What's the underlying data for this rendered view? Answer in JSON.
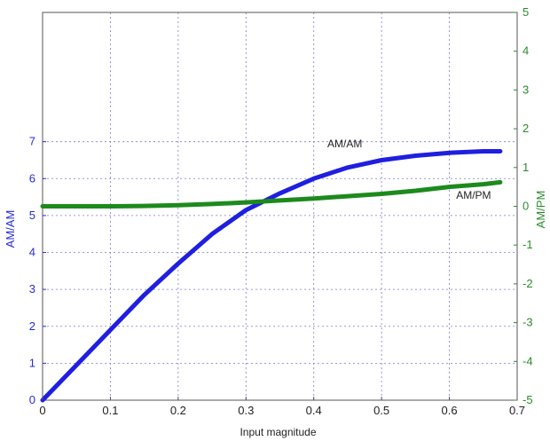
{
  "chart_data": {
    "type": "line",
    "title": "",
    "xlabel": "Input magnitude",
    "ylabel_left": "AM/AM",
    "ylabel_right": "AM/PM",
    "xlim": [
      0,
      0.7
    ],
    "ylim_left": [
      0,
      10.5
    ],
    "ylim_right": [
      -5,
      5
    ],
    "x_ticks": [
      "0",
      "0.1",
      "0.2",
      "0.3",
      "0.4",
      "0.5",
      "0.6",
      "0.7"
    ],
    "y_left_ticks": [
      "0",
      "1",
      "2",
      "3",
      "4",
      "5",
      "6",
      "7"
    ],
    "y_right_ticks": [
      "-5",
      "-4",
      "-3",
      "-2",
      "-1",
      "0",
      "1",
      "2",
      "3",
      "4",
      "5"
    ],
    "grid": true,
    "colors": {
      "am_am": "#1f1fe0",
      "am_pm": "#1c8a1c",
      "left_axis": "#2a2ad8",
      "right_axis": "#2b8a2b",
      "grid": "#7b7bd6"
    },
    "series": [
      {
        "name": "AM/AM",
        "axis": "left",
        "x": [
          0,
          0.05,
          0.1,
          0.15,
          0.2,
          0.25,
          0.3,
          0.35,
          0.4,
          0.45,
          0.5,
          0.55,
          0.6,
          0.65,
          0.675
        ],
        "y": [
          0,
          0.95,
          1.9,
          2.85,
          3.7,
          4.5,
          5.15,
          5.6,
          6.0,
          6.3,
          6.5,
          6.62,
          6.7,
          6.74,
          6.74
        ]
      },
      {
        "name": "AM/PM",
        "axis": "right",
        "x": [
          0,
          0.05,
          0.1,
          0.15,
          0.2,
          0.25,
          0.3,
          0.35,
          0.4,
          0.45,
          0.5,
          0.55,
          0.6,
          0.65,
          0.675
        ],
        "y": [
          0,
          0,
          0,
          0.01,
          0.03,
          0.06,
          0.1,
          0.15,
          0.2,
          0.26,
          0.32,
          0.4,
          0.5,
          0.57,
          0.62
        ]
      }
    ],
    "annotations": [
      {
        "text": "AM/AM",
        "series": "AM/AM",
        "x": 0.42,
        "y": 6.85,
        "axis": "left"
      },
      {
        "text": "AM/PM",
        "series": "AM/PM",
        "x": 0.61,
        "y": 0.2,
        "axis": "right"
      }
    ]
  }
}
